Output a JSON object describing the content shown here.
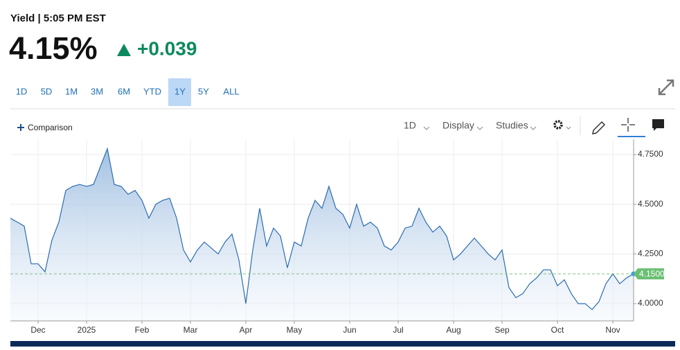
{
  "header": {
    "label": "Yield | 5:05 PM EST",
    "price": "4.15%",
    "change": "+0.039"
  },
  "ranges": [
    "1D",
    "5D",
    "1M",
    "3M",
    "6M",
    "YTD",
    "1Y",
    "5Y",
    "ALL"
  ],
  "active_range": "1Y",
  "toolbar": {
    "comparison": "Comparison",
    "interval": "1D",
    "display": "Display",
    "studies": "Studies"
  },
  "chart_data": {
    "type": "area",
    "values": [
      4.43,
      4.41,
      4.39,
      4.2,
      4.2,
      4.16,
      4.32,
      4.41,
      4.57,
      4.59,
      4.6,
      4.59,
      4.6,
      4.69,
      4.78,
      4.6,
      4.59,
      4.55,
      4.57,
      4.52,
      4.43,
      4.5,
      4.52,
      4.53,
      4.43,
      4.27,
      4.21,
      4.27,
      4.31,
      4.28,
      4.25,
      4.31,
      4.35,
      4.22,
      4.0,
      4.27,
      4.48,
      4.29,
      4.38,
      4.34,
      4.18,
      4.31,
      4.29,
      4.43,
      4.52,
      4.48,
      4.59,
      4.48,
      4.45,
      4.38,
      4.5,
      4.39,
      4.41,
      4.38,
      4.29,
      4.27,
      4.31,
      4.38,
      4.39,
      4.48,
      4.41,
      4.36,
      4.39,
      4.34,
      4.22,
      4.25,
      4.29,
      4.33,
      4.29,
      4.25,
      4.22,
      4.27,
      4.08,
      4.03,
      4.05,
      4.1,
      4.13,
      4.17,
      4.17,
      4.09,
      4.12,
      4.05,
      4.0,
      4.0,
      3.97,
      4.01,
      4.1,
      4.15,
      4.1,
      4.13,
      4.15
    ],
    "color": "#2b6cb0",
    "xlim": [
      0,
      90
    ],
    "xticks": [
      {
        "value": 4,
        "label": "Dec"
      },
      {
        "value": 11,
        "label": "2025"
      },
      {
        "value": 19,
        "label": "Feb"
      },
      {
        "value": 26,
        "label": "Mar"
      },
      {
        "value": 34,
        "label": "Apr"
      },
      {
        "value": 41,
        "label": "May"
      },
      {
        "value": 49,
        "label": "Jun"
      },
      {
        "value": 56,
        "label": "Jul"
      },
      {
        "value": 64,
        "label": "Aug"
      },
      {
        "value": 71,
        "label": "Sep"
      },
      {
        "value": 79,
        "label": "Oct"
      },
      {
        "value": 87,
        "label": "Nov"
      }
    ],
    "ylim": [
      3.913,
      4.827
    ],
    "yticks": [
      {
        "value": 4.0,
        "label": "4.0000"
      },
      {
        "value": 4.25,
        "label": "4.2500"
      },
      {
        "value": 4.5,
        "label": "4.5000"
      },
      {
        "value": 4.75,
        "label": "4.7500"
      }
    ],
    "last_value": {
      "value": 4.15,
      "label": "4.1500"
    },
    "grid": true
  }
}
